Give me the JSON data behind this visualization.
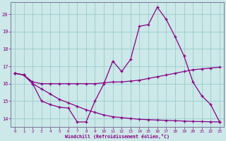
{
  "xlabel": "Windchill (Refroidissement éolien,°C)",
  "bg_color": "#cce8e8",
  "line_color": "#880088",
  "grid_color": "#99cccc",
  "ylim": [
    13.5,
    20.7
  ],
  "xlim": [
    -0.5,
    23.5
  ],
  "yticks": [
    14,
    15,
    16,
    17,
    18,
    19,
    20
  ],
  "xticks": [
    0,
    1,
    2,
    3,
    4,
    5,
    6,
    7,
    8,
    9,
    10,
    11,
    12,
    13,
    14,
    15,
    16,
    17,
    18,
    19,
    20,
    21,
    22,
    23
  ],
  "line1_x": [
    0,
    1,
    2,
    3,
    4,
    5,
    6,
    7,
    8,
    9,
    10,
    11,
    12,
    13,
    14,
    15,
    16,
    17,
    18,
    19,
    20,
    21,
    22,
    23
  ],
  "line1_y": [
    16.6,
    16.5,
    16.0,
    15.0,
    14.8,
    14.65,
    14.6,
    13.8,
    13.8,
    15.0,
    16.0,
    17.3,
    16.7,
    17.4,
    19.3,
    19.4,
    20.4,
    19.7,
    18.7,
    17.6,
    16.1,
    15.3,
    14.8,
    13.8
  ],
  "line2_x": [
    0,
    1,
    2,
    3,
    4,
    5,
    6,
    7,
    8,
    9,
    10,
    11,
    12,
    13,
    14,
    15,
    16,
    17,
    18,
    19,
    20,
    21,
    22,
    23
  ],
  "line2_y": [
    16.6,
    16.5,
    16.1,
    16.0,
    16.0,
    16.0,
    16.0,
    16.0,
    16.0,
    16.0,
    16.05,
    16.1,
    16.1,
    16.15,
    16.2,
    16.3,
    16.4,
    16.5,
    16.6,
    16.7,
    16.8,
    16.85,
    16.9,
    16.95
  ],
  "line3_x": [
    0,
    1,
    2,
    3,
    4,
    5,
    6,
    7,
    8,
    9,
    10,
    11,
    12,
    13,
    14,
    15,
    16,
    17,
    18,
    19,
    20,
    21,
    22,
    23
  ],
  "line3_y": [
    16.6,
    16.5,
    16.0,
    15.7,
    15.4,
    15.1,
    14.9,
    14.7,
    14.5,
    14.35,
    14.2,
    14.1,
    14.05,
    14.0,
    13.95,
    13.93,
    13.91,
    13.89,
    13.87,
    13.85,
    13.83,
    13.82,
    13.81,
    13.8
  ]
}
